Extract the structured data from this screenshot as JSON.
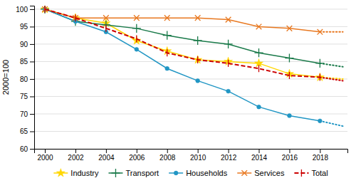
{
  "chart_data": {
    "type": "line",
    "y_label": "2000=100",
    "x": [
      2000,
      2002,
      2004,
      2006,
      2008,
      2010,
      2012,
      2014,
      2016,
      2018,
      2019.5
    ],
    "series": [
      {
        "name": "Industry",
        "color": "#FFD700",
        "marker": "star",
        "line_style": "solid",
        "values": [
          100,
          97.5,
          96.0,
          91.0,
          88.0,
          85.5,
          85.0,
          84.5,
          81.5,
          80.5,
          null
        ]
      },
      {
        "color": "#FFD700",
        "line_style": "dotted",
        "values": [
          null,
          null,
          null,
          null,
          null,
          null,
          null,
          null,
          null,
          80.5,
          80.0
        ]
      },
      {
        "name": "Transport",
        "color": "#1a7a4a",
        "marker": "plus",
        "line_style": "solid",
        "values": [
          100,
          96.5,
          95.5,
          94.5,
          92.5,
          91.0,
          90.0,
          87.5,
          86.0,
          84.5,
          null
        ]
      },
      {
        "color": "#1a7a4a",
        "line_style": "dotted",
        "values": [
          null,
          null,
          null,
          null,
          null,
          null,
          null,
          null,
          null,
          84.5,
          83.5
        ]
      },
      {
        "name": "Households",
        "color": "#2196c4",
        "marker": "circle",
        "line_style": "solid",
        "values": [
          100,
          96.5,
          93.5,
          88.5,
          83.0,
          79.5,
          76.5,
          72.0,
          69.5,
          68.0,
          null
        ]
      },
      {
        "color": "#2196c4",
        "line_style": "dotted",
        "values": [
          null,
          null,
          null,
          null,
          null,
          null,
          null,
          null,
          null,
          68.0,
          66.5
        ]
      },
      {
        "name": "Services",
        "color": "#E87820",
        "marker": "x",
        "line_style": "solid",
        "values": [
          100,
          97.5,
          97.5,
          97.5,
          97.5,
          97.5,
          97.0,
          95.0,
          94.5,
          93.5,
          null
        ]
      },
      {
        "color": "#E87820",
        "line_style": "dotted",
        "values": [
          null,
          null,
          null,
          null,
          null,
          null,
          null,
          null,
          null,
          93.5,
          93.5
        ]
      },
      {
        "name": "Total",
        "color": "#cc0000",
        "marker": "vline",
        "line_style": "dashed",
        "values": [
          100,
          97.5,
          94.5,
          91.5,
          87.5,
          85.5,
          84.5,
          83.0,
          81.0,
          80.5,
          null
        ]
      },
      {
        "color": "#cc0000",
        "line_style": "dotted",
        "values": [
          null,
          null,
          null,
          null,
          null,
          null,
          null,
          null,
          null,
          80.5,
          79.5
        ]
      }
    ],
    "xlim": [
      1999.3,
      2019.8
    ],
    "xticks": [
      2000,
      2002,
      2004,
      2006,
      2008,
      2010,
      2012,
      2014,
      2016,
      2018
    ],
    "ylim": [
      60,
      101
    ],
    "yticks": [
      60,
      65,
      70,
      75,
      80,
      85,
      90,
      95,
      100
    ],
    "grid": true,
    "legend": "bottom"
  }
}
